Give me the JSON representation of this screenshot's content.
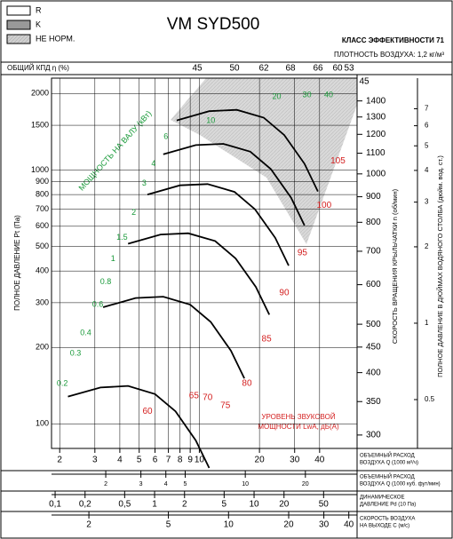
{
  "chart_data": {
    "type": "line",
    "title": "VM SYD500",
    "class_label": "КЛАСС ЭФФЕКТИВНОСТИ 71",
    "density_label": "ПЛОТНОСТЬ ВОЗДУХА: 1,2 кг/м³",
    "legend": [
      "R",
      "K",
      "НЕ НОРМ."
    ],
    "efficiency_label": "ОБЩИЙ КПД η (%)",
    "efficiency_top": [
      45,
      50,
      62,
      68,
      66,
      60,
      53,
      45
    ],
    "log_scale": true,
    "grid": true,
    "y_label": "ПОЛНОЕ ДАВЛЕНИЕ Pt (Па)",
    "ylim": [
      80,
      2300
    ],
    "yticks": [
      100,
      200,
      300,
      400,
      500,
      600,
      700,
      800,
      900,
      1000,
      1500,
      2000
    ],
    "y2_label": "СКОРОСТЬ ВРАЩЕНИЯ КРЫЛЬЧАТКИ n (об/мин)",
    "y2lim": [
      282,
      1555
    ],
    "y2ticks": [
      300,
      350,
      400,
      450,
      500,
      600,
      700,
      800,
      900,
      1000,
      1100,
      1200,
      1300,
      1400
    ],
    "y3_label": "ПОЛНОЕ ДАВЛЕНИЕ В ДЮЙМАХ ВОДЯНОГО СТОЛБА (дюйм. вод. ст.)",
    "y3lim": [
      0.321,
      9.24
    ],
    "y3ticks": [
      0.5,
      1,
      2,
      3,
      4,
      5,
      6,
      7
    ],
    "x_label": [
      "ОБЪЕМНЫЙ РАСХОД",
      "ВОЗДУХА Q (1000 м³/ч)"
    ],
    "xlim": [
      1.82,
      61.6
    ],
    "xticks": [
      2,
      3,
      4,
      5,
      6,
      7,
      8,
      9,
      10,
      20,
      30,
      40
    ],
    "cfm_label": [
      "ОБЪЕМНЫЙ РАСХОД",
      "ВОЗДУХА Q (1000 куб. фут/мин)"
    ],
    "cfm_lim": [
      1.07,
      36.3
    ],
    "cfm_ticks": [
      2,
      3,
      4,
      5,
      10,
      20
    ],
    "pd_label": [
      "ДИНАМИЧЕСКОЕ",
      "ДАВЛЕНИЕ Pd (10 Па)"
    ],
    "pd_lim": [
      0.092,
      108.5
    ],
    "pd_ticks": [
      {
        "value": 0.1,
        "label": "0,1"
      },
      {
        "value": 0.2,
        "label": "0,2"
      },
      {
        "value": 0.5,
        "label": "0,5"
      },
      1,
      2,
      5,
      10,
      20,
      50
    ],
    "c_label": [
      "СКОРОСТЬ ВОЗДУХА",
      "НА ВЫХОДЕ C (м/с)"
    ],
    "c_lim": [
      1.3,
      44
    ],
    "c_ticks": [
      2,
      5,
      10,
      20,
      30,
      40
    ],
    "power_label": "МОЩНОСТЬ НА ВАЛУ (кВт)",
    "power_labels": [
      {
        "label": 0.2,
        "x": 2.06,
        "y": 144
      },
      {
        "label": 0.3,
        "x": 2.4,
        "y": 189
      },
      {
        "label": 0.4,
        "x": 2.7,
        "y": 228
      },
      {
        "label": 0.6,
        "x": 3.1,
        "y": 295
      },
      {
        "label": 0.8,
        "x": 3.4,
        "y": 362
      },
      {
        "label": 1,
        "x": 3.7,
        "y": 446
      },
      {
        "label": 1.5,
        "x": 4.1,
        "y": 541
      },
      {
        "label": 2,
        "x": 4.7,
        "y": 678
      },
      {
        "label": 3,
        "x": 5.3,
        "y": 886
      },
      {
        "label": 4,
        "x": 5.9,
        "y": 1058
      },
      {
        "label": 6,
        "x": 6.8,
        "y": 1348
      },
      {
        "label": 10,
        "x": 11.4,
        "y": 1559
      },
      {
        "label": 20,
        "x": 24.4,
        "y": 1938
      },
      {
        "label": 30,
        "x": 34.6,
        "y": 1970
      },
      {
        "label": 40,
        "x": 44.4,
        "y": 1970
      }
    ],
    "power_color": "#1a9a3a",
    "noise_label": [
      "УРОВЕНЬ ЗВУКОВОЙ",
      "МОЩНОСТИ LwA, дБ(A)"
    ],
    "noise_labels": [
      {
        "label": 60,
        "x": 5.5,
        "y": 112
      },
      {
        "label": 65,
        "x": 9.4,
        "y": 129
      },
      {
        "label": 70,
        "x": 11,
        "y": 127
      },
      {
        "label": 75,
        "x": 13.5,
        "y": 118
      },
      {
        "label": 80,
        "x": 17.3,
        "y": 144
      },
      {
        "label": 85,
        "x": 21.7,
        "y": 216
      },
      {
        "label": 90,
        "x": 26.6,
        "y": 328
      },
      {
        "label": 95,
        "x": 32.8,
        "y": 472
      },
      {
        "label": 100,
        "x": 42.1,
        "y": 724
      },
      {
        "label": 105,
        "x": 49.4,
        "y": 1084
      }
    ],
    "noise_color": "#d42020",
    "series": [
      {
        "color": "#000000",
        "x": [
          2.2,
          3.2,
          4.4,
          6,
          7.6,
          9.6,
          11.2
        ],
        "values": [
          128,
          139,
          141,
          131,
          112,
          86,
          67
        ]
      },
      {
        "color": "#000000",
        "x": [
          3.3,
          4.8,
          6.6,
          9,
          11.4,
          14.4,
          16.8
        ],
        "values": [
          288,
          313,
          317,
          295,
          252,
          194,
          151
        ]
      },
      {
        "color": "#000000",
        "x": [
          4.4,
          6.4,
          8.8,
          12,
          15.2,
          19.2,
          22.4
        ],
        "values": [
          512,
          557,
          563,
          525,
          448,
          346,
          269
        ]
      },
      {
        "color": "#000000",
        "x": [
          5.5,
          8,
          11,
          15,
          19,
          24,
          28
        ],
        "values": [
          800,
          870,
          880,
          820,
          700,
          540,
          420
        ]
      },
      {
        "color": "#000000",
        "x": [
          6.6,
          9.6,
          13.2,
          18,
          22.8,
          28.8,
          33.6
        ],
        "values": [
          1152,
          1253,
          1267,
          1181,
          1008,
          778,
          605
        ]
      },
      {
        "color": "#000000",
        "x": [
          7.7,
          11.2,
          15.4,
          21,
          26.6,
          33.6,
          39.2
        ],
        "values": [
          1568,
          1705,
          1725,
          1607,
          1372,
          1058,
          823
        ]
      }
    ]
  }
}
